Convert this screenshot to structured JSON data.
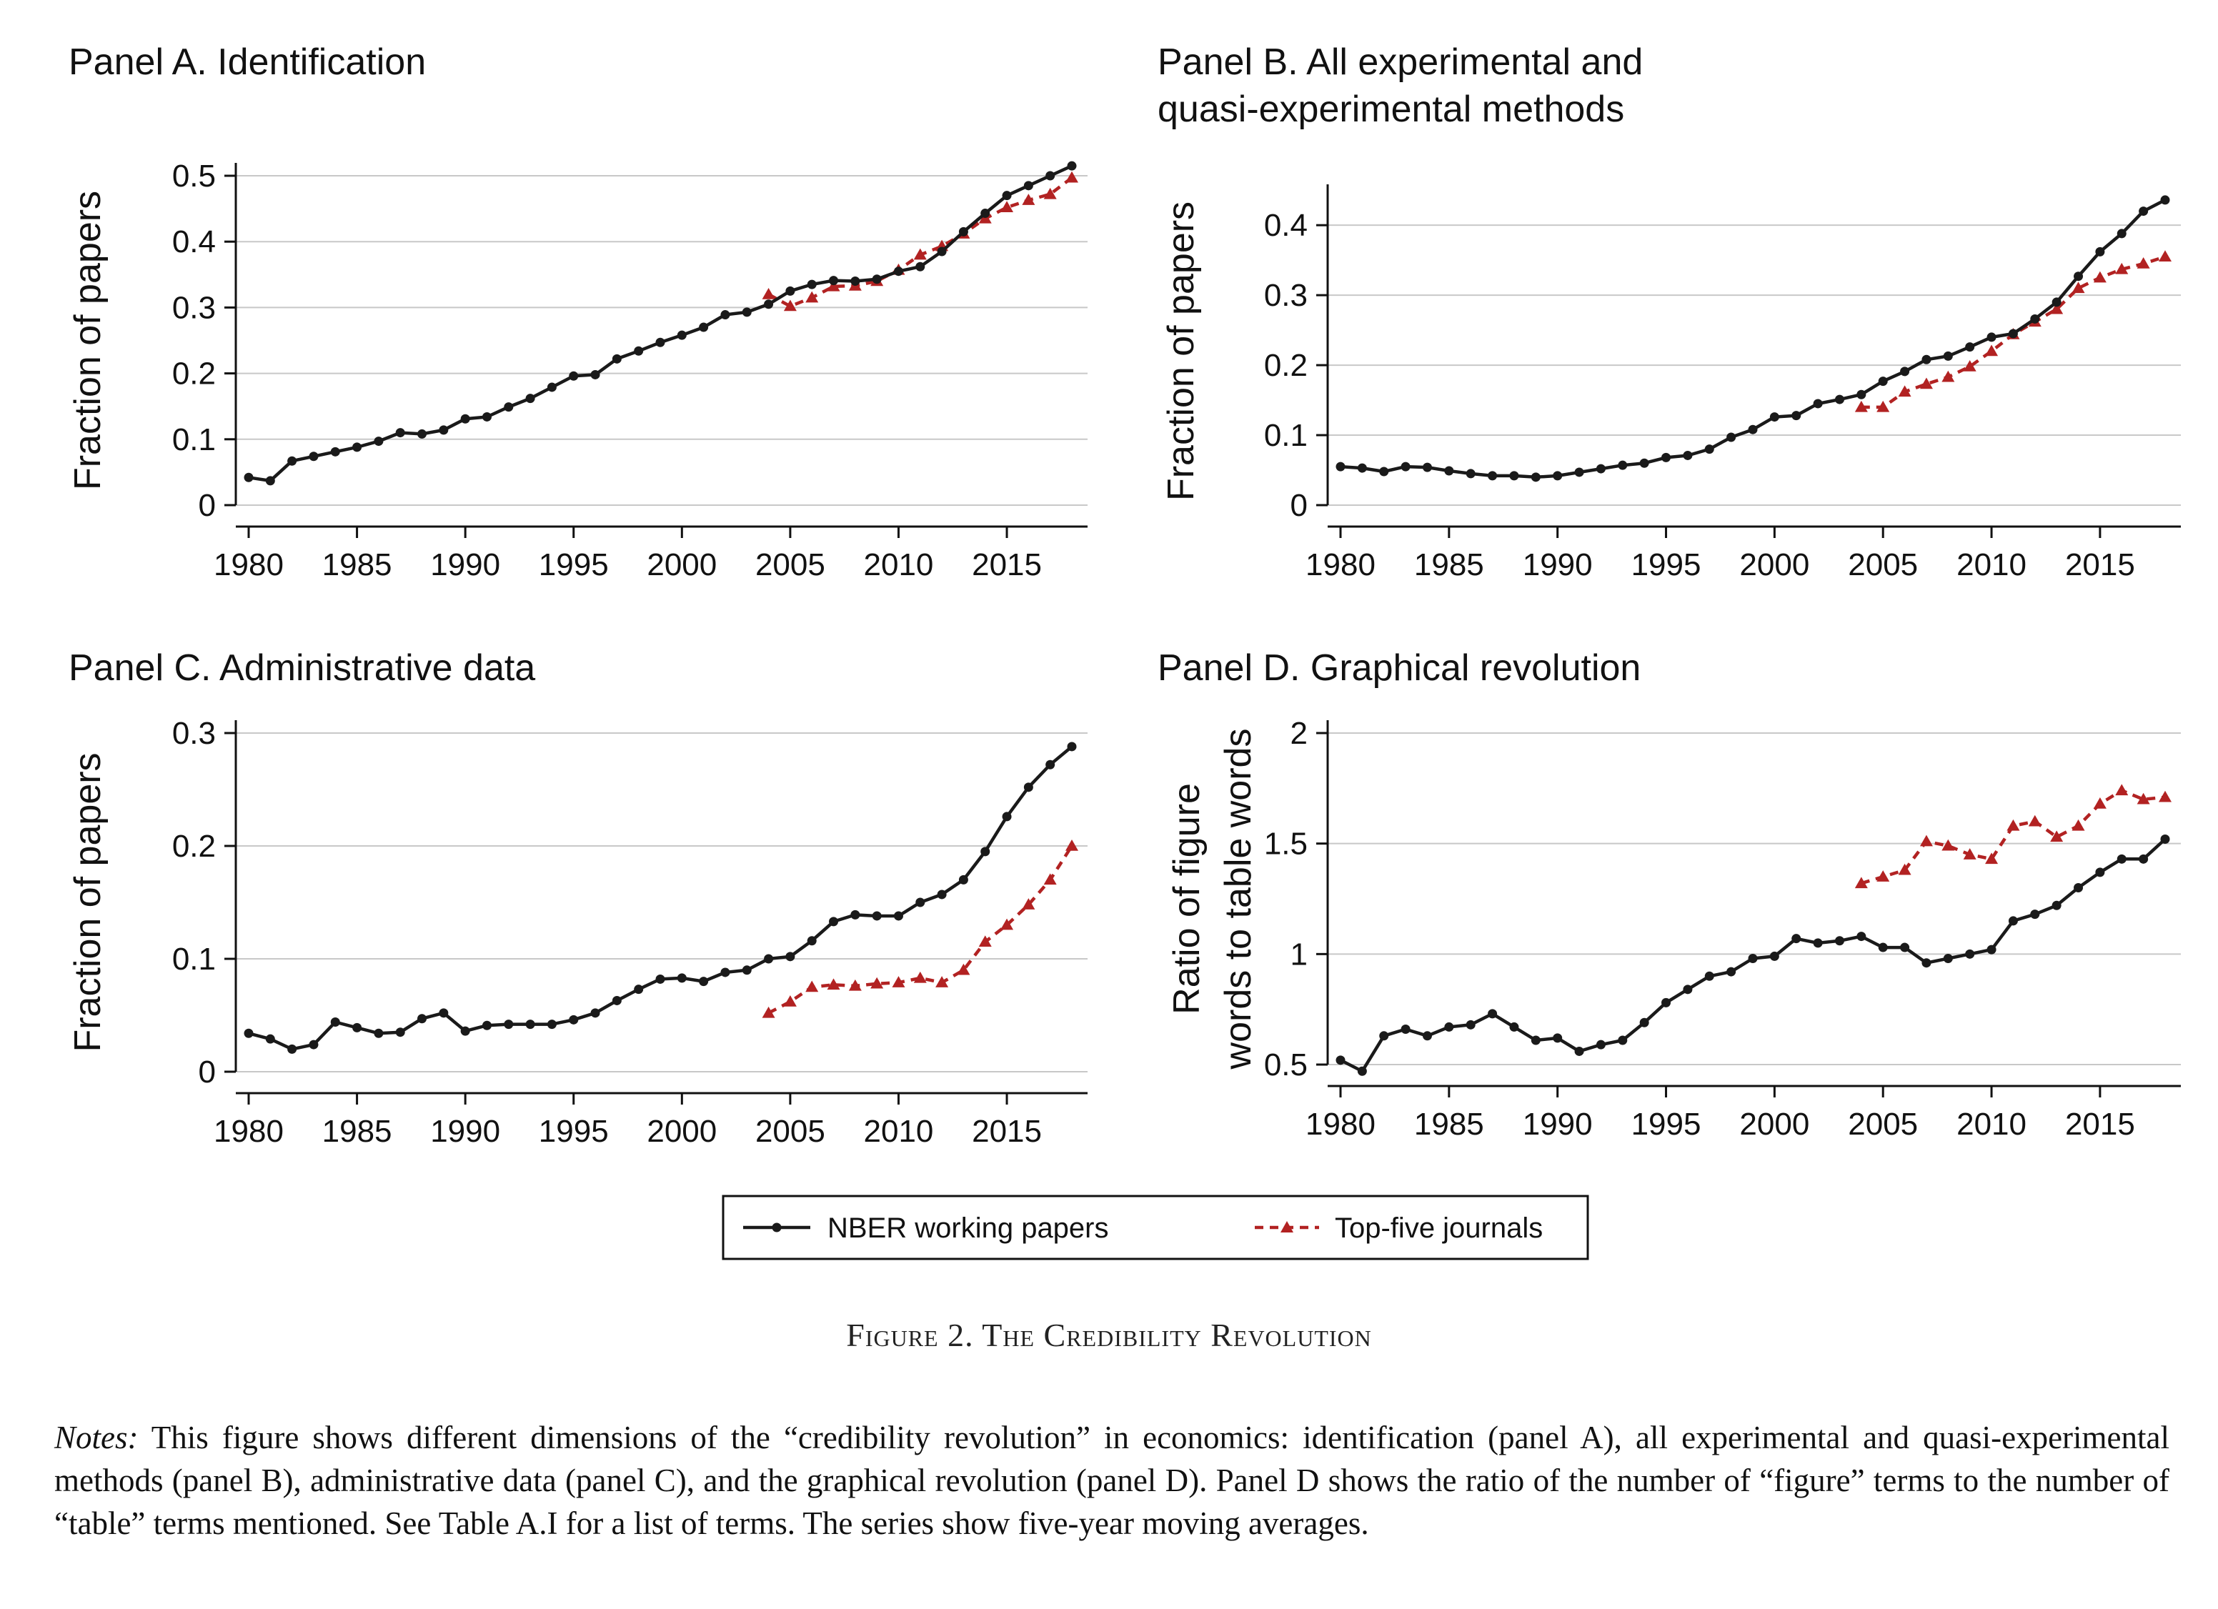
{
  "figure": {
    "caption": "Figure 2. The Credibility Revolution",
    "notes_label": "Notes:",
    "notes_text": "This figure shows different dimensions of the “credibility revolution” in economics: identification (panel A), all experimental and quasi-experimental methods (panel B), administrative data (panel C), and the graphical revolution (panel D). Panel D shows the ratio of the number of “figure” terms to the number of “table” terms mentioned. See Table A.I for a list of terms. The series show five-year moving averages."
  },
  "legend": {
    "entries": [
      {
        "label": "NBER working papers",
        "color": "#1a1a1a",
        "style": "solid-circle"
      },
      {
        "label": "Top-five journals",
        "color": "#b22222",
        "style": "dashed-triangle"
      }
    ]
  },
  "chart_data": [
    {
      "type": "line",
      "title": "Panel A. Identification",
      "ylabel": "Fraction of papers",
      "xlabel": "",
      "xlim": [
        1980,
        2018
      ],
      "ylim": [
        0,
        0.5
      ],
      "xticks": [
        "1980",
        "1985",
        "1990",
        "1995",
        "2000",
        "2005",
        "2010",
        "2015"
      ],
      "yticks": [
        "0",
        "0.1",
        "0.2",
        "0.3",
        "0.4",
        "0.5"
      ],
      "grid": true,
      "series": [
        {
          "name": "NBER working papers",
          "x": [
            1980,
            1981,
            1982,
            1983,
            1984,
            1985,
            1986,
            1987,
            1988,
            1989,
            1990,
            1991,
            1992,
            1993,
            1994,
            1995,
            1996,
            1997,
            1998,
            1999,
            2000,
            2001,
            2002,
            2003,
            2004,
            2005,
            2006,
            2007,
            2008,
            2009,
            2010,
            2011,
            2012,
            2013,
            2014,
            2015,
            2016,
            2017,
            2018
          ],
          "y": [
            0.042,
            0.037,
            0.067,
            0.074,
            0.081,
            0.088,
            0.097,
            0.11,
            0.108,
            0.114,
            0.131,
            0.134,
            0.149,
            0.162,
            0.179,
            0.196,
            0.198,
            0.222,
            0.234,
            0.247,
            0.258,
            0.27,
            0.289,
            0.293,
            0.305,
            0.325,
            0.335,
            0.341,
            0.34,
            0.343,
            0.355,
            0.362,
            0.385,
            0.415,
            0.443,
            0.47,
            0.485,
            0.5,
            0.515
          ]
        },
        {
          "name": "Top-five journals",
          "x": [
            2004,
            2005,
            2006,
            2007,
            2008,
            2009,
            2010,
            2011,
            2012,
            2013,
            2014,
            2015,
            2016,
            2017,
            2018
          ],
          "y": [
            0.32,
            0.302,
            0.315,
            0.332,
            0.333,
            0.34,
            0.357,
            0.38,
            0.393,
            0.412,
            0.435,
            0.452,
            0.463,
            0.472,
            0.497
          ]
        }
      ]
    },
    {
      "type": "line",
      "title": "Panel B. All experimental and quasi-experimental methods",
      "title_lines": [
        "Panel B. All experimental and",
        "quasi-experimental methods"
      ],
      "ylabel": "Fraction of papers",
      "xlabel": "",
      "xlim": [
        1980,
        2018
      ],
      "ylim": [
        0,
        0.44
      ],
      "xticks": [
        "1980",
        "1985",
        "1990",
        "1995",
        "2000",
        "2005",
        "2010",
        "2015"
      ],
      "yticks": [
        "0",
        "0.1",
        "0.2",
        "0.3",
        "0.4"
      ],
      "grid": true,
      "series": [
        {
          "name": "NBER working papers",
          "x": [
            1980,
            1981,
            1982,
            1983,
            1984,
            1985,
            1986,
            1987,
            1988,
            1989,
            1990,
            1991,
            1992,
            1993,
            1994,
            1995,
            1996,
            1997,
            1998,
            1999,
            2000,
            2001,
            2002,
            2003,
            2004,
            2005,
            2006,
            2007,
            2008,
            2009,
            2010,
            2011,
            2012,
            2013,
            2014,
            2015,
            2016,
            2017,
            2018
          ],
          "y": [
            0.055,
            0.053,
            0.048,
            0.055,
            0.054,
            0.049,
            0.045,
            0.042,
            0.042,
            0.04,
            0.042,
            0.047,
            0.052,
            0.057,
            0.06,
            0.068,
            0.071,
            0.08,
            0.097,
            0.108,
            0.126,
            0.128,
            0.145,
            0.151,
            0.158,
            0.177,
            0.191,
            0.208,
            0.213,
            0.226,
            0.24,
            0.245,
            0.266,
            0.29,
            0.327,
            0.362,
            0.388,
            0.42,
            0.436
          ]
        },
        {
          "name": "Top-five journals",
          "x": [
            2004,
            2005,
            2006,
            2007,
            2008,
            2009,
            2010,
            2011,
            2012,
            2013,
            2014,
            2015,
            2016,
            2017,
            2018
          ],
          "y": [
            0.14,
            0.14,
            0.162,
            0.173,
            0.183,
            0.198,
            0.22,
            0.244,
            0.262,
            0.28,
            0.31,
            0.325,
            0.337,
            0.345,
            0.355
          ]
        }
      ]
    },
    {
      "type": "line",
      "title": "Panel C. Administrative data",
      "ylabel": "Fraction of papers",
      "xlabel": "",
      "xlim": [
        1980,
        2018
      ],
      "ylim": [
        0,
        0.3
      ],
      "xticks": [
        "1980",
        "1985",
        "1990",
        "1995",
        "2000",
        "2005",
        "2010",
        "2015"
      ],
      "yticks": [
        "0",
        "0.1",
        "0.2",
        "0.3"
      ],
      "grid": true,
      "series": [
        {
          "name": "NBER working papers",
          "x": [
            1980,
            1981,
            1982,
            1983,
            1984,
            1985,
            1986,
            1987,
            1988,
            1989,
            1990,
            1991,
            1992,
            1993,
            1994,
            1995,
            1996,
            1997,
            1998,
            1999,
            2000,
            2001,
            2002,
            2003,
            2004,
            2005,
            2006,
            2007,
            2008,
            2009,
            2010,
            2011,
            2012,
            2013,
            2014,
            2015,
            2016,
            2017,
            2018
          ],
          "y": [
            0.034,
            0.029,
            0.02,
            0.024,
            0.044,
            0.039,
            0.034,
            0.035,
            0.047,
            0.052,
            0.036,
            0.041,
            0.042,
            0.042,
            0.042,
            0.046,
            0.052,
            0.063,
            0.073,
            0.082,
            0.083,
            0.08,
            0.088,
            0.09,
            0.1,
            0.102,
            0.116,
            0.133,
            0.139,
            0.138,
            0.138,
            0.15,
            0.157,
            0.17,
            0.195,
            0.226,
            0.252,
            0.272,
            0.288
          ]
        },
        {
          "name": "Top-five journals",
          "x": [
            2004,
            2005,
            2006,
            2007,
            2008,
            2009,
            2010,
            2011,
            2012,
            2013,
            2014,
            2015,
            2016,
            2017,
            2018
          ],
          "y": [
            0.052,
            0.062,
            0.075,
            0.077,
            0.076,
            0.078,
            0.079,
            0.083,
            0.079,
            0.09,
            0.115,
            0.13,
            0.148,
            0.17,
            0.2
          ]
        }
      ]
    },
    {
      "type": "line",
      "title": "Panel D. Graphical revolution",
      "ylabel": "Ratio of figure words to table words",
      "ylabel_lines": [
        "Ratio of figure",
        "words to table words"
      ],
      "xlabel": "",
      "xlim": [
        1980,
        2018
      ],
      "ylim": [
        0.5,
        2
      ],
      "xticks": [
        "1980",
        "1985",
        "1990",
        "1995",
        "2000",
        "2005",
        "2010",
        "2015"
      ],
      "yticks": [
        "0.5",
        "1",
        "1.5",
        "2"
      ],
      "grid": true,
      "series": [
        {
          "name": "NBER working papers",
          "x": [
            1980,
            1981,
            1982,
            1983,
            1984,
            1985,
            1986,
            1987,
            1988,
            1989,
            1990,
            1991,
            1992,
            1993,
            1994,
            1995,
            1996,
            1997,
            1998,
            1999,
            2000,
            2001,
            2002,
            2003,
            2004,
            2005,
            2006,
            2007,
            2008,
            2009,
            2010,
            2011,
            2012,
            2013,
            2014,
            2015,
            2016,
            2017,
            2018
          ],
          "y": [
            0.52,
            0.47,
            0.63,
            0.66,
            0.63,
            0.67,
            0.68,
            0.73,
            0.67,
            0.61,
            0.62,
            0.56,
            0.59,
            0.61,
            0.69,
            0.78,
            0.84,
            0.9,
            0.92,
            0.98,
            0.99,
            1.07,
            1.05,
            1.06,
            1.08,
            1.03,
            1.03,
            0.96,
            0.98,
            1.0,
            1.02,
            1.15,
            1.18,
            1.22,
            1.3,
            1.37,
            1.43,
            1.43,
            1.52
          ]
        },
        {
          "name": "Top-five journals",
          "x": [
            2004,
            2005,
            2006,
            2007,
            2008,
            2009,
            2010,
            2011,
            2012,
            2013,
            2014,
            2015,
            2016,
            2017,
            2018
          ],
          "y": [
            1.32,
            1.35,
            1.38,
            1.51,
            1.49,
            1.45,
            1.43,
            1.58,
            1.6,
            1.53,
            1.58,
            1.68,
            1.74,
            1.7,
            1.71
          ]
        }
      ]
    }
  ]
}
